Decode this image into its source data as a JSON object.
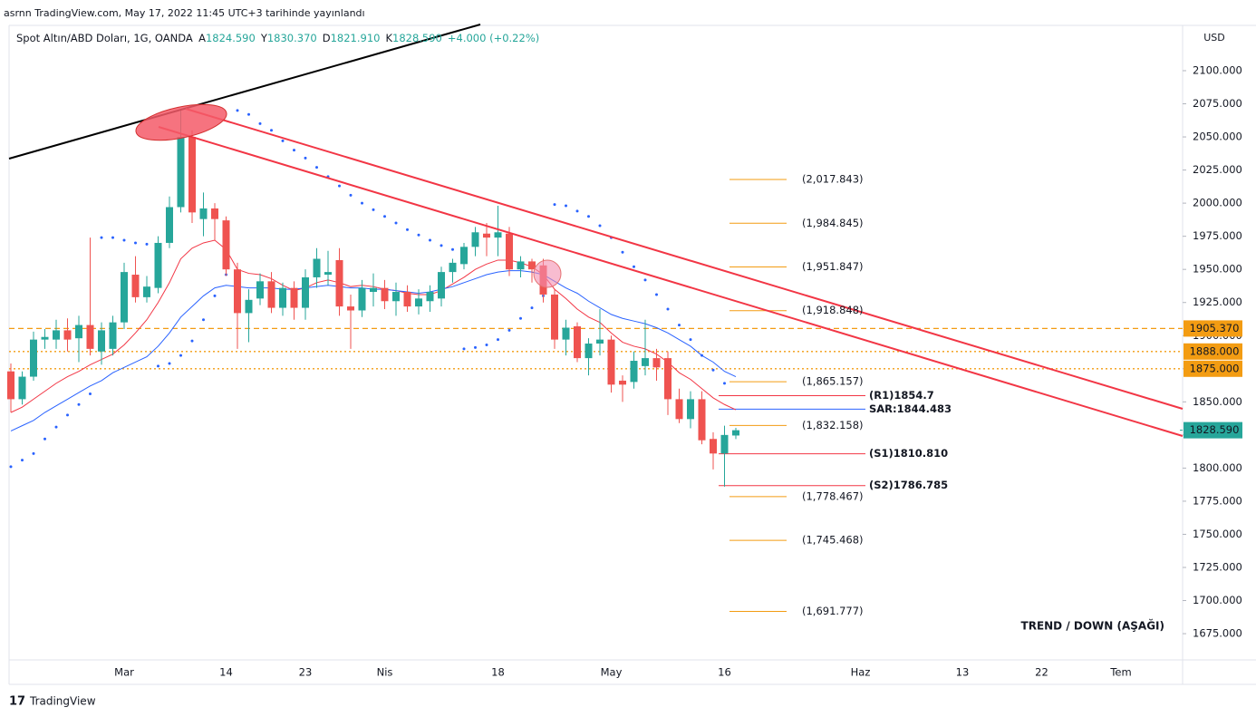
{
  "header": {
    "published": "asrnn TradingView.com, May 17, 2022 11:45 UTC+3 tarihinde yayınlandı",
    "symbol": "Spot Altın/ABD Doları, 1G, OANDA",
    "ohlc": [
      "A",
      "1824.590",
      "Y",
      "1830.370",
      "D",
      "1821.910",
      "K",
      "1828.590"
    ],
    "change": "+4.000 (+0.22%)",
    "currency": "USD",
    "footer": "TradingView"
  },
  "chart_data": {
    "type": "candlestick",
    "up_color": "#26a69a",
    "down_color": "#ef5350",
    "categories": [
      null,
      null,
      null,
      null,
      null,
      null,
      null,
      null,
      null,
      null,
      "Mar",
      null,
      null,
      null,
      null,
      null,
      null,
      null,
      null,
      "14",
      null,
      null,
      null,
      null,
      null,
      null,
      "23",
      null,
      null,
      null,
      null,
      null,
      null,
      "Nis",
      null,
      null,
      null,
      null,
      null,
      null,
      null,
      null,
      null,
      "18",
      null,
      null,
      null,
      null,
      null,
      null,
      null,
      null,
      null,
      "May",
      null,
      null,
      null,
      null,
      null,
      null,
      null,
      null,
      null,
      "16",
      null,
      null,
      null,
      null,
      null,
      null,
      null,
      null,
      null,
      null,
      null,
      "Haz",
      null,
      null,
      null,
      null,
      null,
      null,
      null,
      null,
      "13",
      null,
      null,
      null,
      null,
      null,
      null,
      "22",
      null,
      null,
      null,
      null,
      null,
      null,
      "Tem"
    ],
    "open": [
      1873,
      1852,
      1869,
      1897,
      1897,
      1904,
      1898,
      1908,
      1888,
      1890,
      1910,
      1946,
      1929,
      1936,
      1970,
      1997,
      2050,
      1988,
      1996,
      1987,
      1950,
      1917,
      1928,
      1941,
      1921,
      1936,
      1921,
      1944,
      1946,
      1957,
      1922,
      1919,
      1933,
      1936,
      1926,
      1933,
      1922,
      1926,
      1928,
      1948,
      1954,
      1967,
      1977,
      1974,
      1977,
      1950,
      1956,
      1953,
      1931,
      1897,
      1907,
      1883,
      1894,
      1897,
      1866,
      1865,
      1877,
      1883,
      1883,
      1852,
      1837,
      1852,
      1822,
      1811,
      1824.59,
      null,
      null,
      null,
      null,
      null,
      null,
      null,
      null,
      null,
      null,
      null,
      null,
      null,
      null,
      null,
      null,
      null,
      null,
      null,
      null,
      null,
      null,
      null,
      null,
      null,
      null,
      null,
      null,
      null,
      null,
      null,
      null,
      null,
      null
    ],
    "high": [
      1879,
      1873,
      1903,
      1905,
      1912,
      1913,
      1915,
      1974,
      1910,
      1915,
      1955,
      1960,
      1945,
      1975,
      2005,
      2070,
      2055,
      2008,
      2000,
      1990,
      1955,
      1935,
      1947,
      1948,
      1940,
      1941,
      1950,
      1966,
      1964,
      1966,
      1931,
      1942,
      1947,
      1942,
      1940,
      1938,
      1935,
      1938,
      1952,
      1958,
      1970,
      1982,
      1985,
      1998,
      1982,
      1960,
      1958,
      1958,
      1935,
      1912,
      1910,
      1898,
      1920,
      1900,
      1870,
      1888,
      1912,
      1890,
      1888,
      1860,
      1858,
      1858,
      1827,
      1832,
      1830.37,
      null,
      null,
      null,
      null,
      null,
      null,
      null,
      null,
      null,
      null,
      null,
      null,
      null,
      null,
      null,
      null,
      null,
      null,
      null,
      null,
      null,
      null,
      null,
      null,
      null,
      null,
      null,
      null,
      null,
      null,
      null,
      null,
      null,
      null
    ],
    "low": [
      1842,
      1848,
      1866,
      1890,
      1890,
      1888,
      1880,
      1885,
      1878,
      1885,
      1905,
      1925,
      1925,
      1932,
      1966,
      1993,
      1985,
      1975,
      1972,
      1945,
      1890,
      1895,
      1923,
      1917,
      1915,
      1912,
      1912,
      1936,
      1938,
      1915,
      1890,
      1914,
      1922,
      1920,
      1915,
      1918,
      1916,
      1918,
      1922,
      1940,
      1950,
      1960,
      1960,
      1960,
      1945,
      1944,
      1940,
      1925,
      1890,
      1885,
      1880,
      1870,
      1885,
      1857,
      1850,
      1860,
      1870,
      1866,
      1840,
      1834,
      1830,
      1818,
      1799,
      1786,
      1821.91,
      null,
      null,
      null,
      null,
      null,
      null,
      null,
      null,
      null,
      null,
      null,
      null,
      null,
      null,
      null,
      null,
      null,
      null,
      null,
      null,
      null,
      null,
      null,
      null,
      null,
      null,
      null,
      null,
      null,
      null,
      null,
      null,
      null,
      null
    ],
    "close": [
      1852,
      1869,
      1897,
      1899,
      1904,
      1897,
      1908,
      1890,
      1904,
      1910,
      1948,
      1929,
      1937,
      1970,
      1997,
      2050,
      1993,
      1996,
      1988,
      1950,
      1917,
      1927,
      1941,
      1921,
      1936,
      1921,
      1944,
      1958,
      1948,
      1922,
      1919,
      1936,
      1936,
      1926,
      1933,
      1922,
      1928,
      1933,
      1948,
      1955,
      1967,
      1978,
      1974,
      1978,
      1950,
      1956,
      1950,
      1931,
      1897,
      1906,
      1883,
      1894,
      1897,
      1863,
      1863,
      1881,
      1883,
      1876,
      1852,
      1837,
      1852,
      1821,
      1811,
      1825,
      1828.59,
      null,
      null,
      null,
      null,
      null,
      null,
      null,
      null,
      null,
      null,
      null,
      null,
      null,
      null,
      null,
      null,
      null,
      null,
      null,
      null,
      null,
      null,
      null,
      null,
      null,
      null,
      null,
      null,
      null,
      null,
      null,
      null,
      null,
      null
    ],
    "lines": [
      {
        "color": "#f23645",
        "values": [
          1842,
          1846,
          1852,
          1858,
          1864,
          1869,
          1873,
          1878,
          1882,
          1886,
          1893,
          1902,
          1912,
          1925,
          1940,
          1958,
          1966,
          1970,
          1972,
          1965,
          1950,
          1947,
          1946,
          1943,
          1938,
          1934,
          1936,
          1940,
          1942,
          1940,
          1937,
          1938,
          1937,
          1935,
          1934,
          1932,
          1931,
          1931,
          1934,
          1939,
          1944,
          1950,
          1954,
          1957,
          1957,
          1955,
          1952,
          1946,
          1935,
          1928,
          1920,
          1914,
          1910,
          1902,
          1895,
          1892,
          1890,
          1886,
          1880,
          1872,
          1867,
          1860,
          1853,
          1848,
          1844,
          null,
          null,
          null,
          null,
          null,
          null,
          null,
          null,
          null,
          null,
          null,
          null,
          null,
          null,
          null,
          null,
          null,
          null,
          null,
          null,
          null,
          null,
          null,
          null,
          null,
          null,
          null,
          null,
          null,
          null,
          null,
          null,
          null,
          null
        ]
      },
      {
        "color": "#2962ff",
        "values": [
          1828,
          1832,
          1836,
          1842,
          1847,
          1852,
          1857,
          1862,
          1866,
          1872,
          1876,
          1880,
          1884,
          1892,
          1902,
          1914,
          1922,
          1930,
          1936,
          1938,
          1937,
          1936,
          1936,
          1936,
          1935,
          1935,
          1936,
          1937,
          1938,
          1937,
          1936,
          1936,
          1935,
          1935,
          1934,
          1933,
          1932,
          1933,
          1935,
          1937,
          1940,
          1943,
          1946,
          1948,
          1949,
          1949,
          1948,
          1946,
          1941,
          1936,
          1932,
          1926,
          1921,
          1916,
          1913,
          1911,
          1909,
          1906,
          1902,
          1897,
          1892,
          1885,
          1880,
          1873,
          1869,
          null,
          null,
          null,
          null,
          null,
          null,
          null,
          null,
          null,
          null,
          null,
          null,
          null,
          null,
          null,
          null,
          null,
          null,
          null,
          null,
          null,
          null,
          null,
          null,
          null,
          null,
          null,
          null,
          null,
          null,
          null,
          null,
          null,
          null
        ]
      }
    ],
    "sar": {
      "color": "#2962ff",
      "values": [
        1801,
        1806,
        1811,
        1822,
        1831,
        1840,
        1848,
        1856,
        1974,
        1974,
        1972,
        1970,
        1969,
        1877,
        1879,
        1885,
        1896,
        1912,
        1930,
        1946,
        2070,
        2067,
        2060,
        2055,
        2047,
        2040,
        2034,
        2027,
        2020,
        2013,
        2006,
        2000,
        1995,
        1990,
        1985,
        1980,
        1976,
        1972,
        1968,
        1965,
        1890,
        1891,
        1893,
        1897,
        1904,
        1913,
        1921,
        1930,
        1999,
        1998,
        1994,
        1990,
        1983,
        1974,
        1963,
        1952,
        1942,
        1931,
        1920,
        1908,
        1897,
        1885,
        1874,
        1864,
        null,
        null,
        null,
        null,
        null,
        null,
        null,
        null,
        null,
        null,
        null,
        null,
        null,
        null,
        null,
        null,
        null,
        null,
        null,
        null,
        null,
        null,
        null,
        null,
        null,
        null,
        null,
        null,
        null,
        null,
        null,
        null,
        null,
        null,
        null
      ]
    },
    "ylim": [
      1655.2,
      2134.2
    ],
    "yticks": [
      {
        "value": 1675,
        "label": "1675.000"
      },
      {
        "value": 1700,
        "label": "1700.000"
      },
      {
        "value": 1725,
        "label": "1725.000"
      },
      {
        "value": 1750,
        "label": "1750.000"
      },
      {
        "value": 1775,
        "label": "1775.000"
      },
      {
        "value": 1800,
        "label": "1800.000"
      },
      {
        "value": 1825,
        "label": "1825.000"
      },
      {
        "value": 1850,
        "label": "1850.000"
      },
      {
        "value": 1875,
        "label": "1875.000"
      },
      {
        "value": 1900,
        "label": "1900.000"
      },
      {
        "value": 1925,
        "label": "1925.000"
      },
      {
        "value": 1950,
        "label": "1950.000"
      },
      {
        "value": 1975,
        "label": "1975.000"
      },
      {
        "value": 2000,
        "label": "2000.000"
      },
      {
        "value": 2025,
        "label": "2025.000"
      },
      {
        "value": 2050,
        "label": "2050.000"
      },
      {
        "value": 2075,
        "label": "2075.000"
      },
      {
        "value": 2100,
        "label": "2100.000"
      }
    ],
    "price_levels": [
      {
        "value": 1905.37,
        "label": "1905.370",
        "color": "#f39c12",
        "style": "dashed"
      },
      {
        "value": 1888,
        "label": "1888.000",
        "color": "#f39c12",
        "style": "dotted"
      },
      {
        "value": 1875,
        "label": "1875.000",
        "color": "#f39c12",
        "style": "dotted"
      }
    ],
    "last_price": {
      "value": 1828.59,
      "label": "1828.590",
      "color": "#26a69a"
    },
    "fib_levels": {
      "color": "#f39c12",
      "levels": [
        {
          "value": 2017.843,
          "label": "(2,017.843)"
        },
        {
          "value": 1984.845,
          "label": "(1,984.845)"
        },
        {
          "value": 1951.847,
          "label": "(1,951.847)"
        },
        {
          "value": 1918.848,
          "label": "(1,918.848)"
        },
        {
          "value": 1865.157,
          "label": "(1,865.157)"
        },
        {
          "value": 1832.158,
          "label": "(1,832.158)"
        },
        {
          "value": 1778.467,
          "label": "(1,778.467)"
        },
        {
          "value": 1745.468,
          "label": "(1,745.468)"
        },
        {
          "value": 1691.777,
          "label": "(1,691.777)"
        }
      ]
    },
    "pivots": [
      {
        "value": 1854.7,
        "label": "(R1)1854.7",
        "color": "#f23645",
        "text_color": "#f39c12"
      },
      {
        "value": 1844.483,
        "label": "SAR:1844.483",
        "color": "#2962ff",
        "text_color": "#2962ff"
      },
      {
        "value": 1810.81,
        "label": "(S1)1810.810",
        "color": "#f23645",
        "text_color": "#f39c12"
      },
      {
        "value": 1786.785,
        "label": "(S2)1786.785",
        "color": "#f23645",
        "text_color": "#f39c12"
      }
    ],
    "annotation": "TREND / DOWN (AŞAĞI)"
  }
}
